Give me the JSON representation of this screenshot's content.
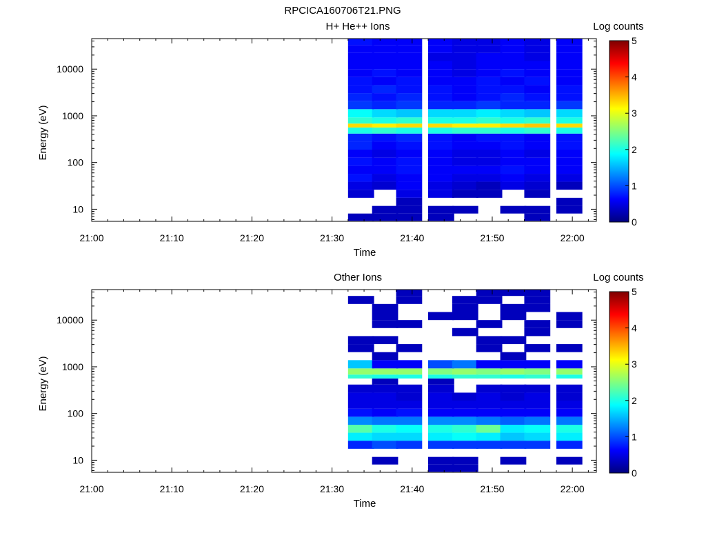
{
  "figure_title": "RPCICA160706T21.PNG",
  "colorbar_stops": [
    "#00007f",
    "#0000ff",
    "#0080ff",
    "#00ffff",
    "#80ff80",
    "#ffff00",
    "#ff8000",
    "#ff0000",
    "#7f0000"
  ],
  "chart_data": [
    {
      "type": "heatmap",
      "title": "H+ He++ Ions",
      "xlabel": "Time",
      "ylabel": "Energy (eV)",
      "x_ticks": [
        "21:00",
        "21:10",
        "21:20",
        "21:30",
        "21:40",
        "21:50",
        "22:00"
      ],
      "y_ticks": [
        "10",
        "100",
        "1000",
        "10000"
      ],
      "xlim": [
        "21:00",
        "22:03"
      ],
      "ylim": [
        5.5,
        45000
      ],
      "yscale": "log",
      "colorbar": {
        "label": "Log counts",
        "ticks": [
          "0",
          "1",
          "2",
          "3",
          "4",
          "5"
        ],
        "range": [
          0,
          5
        ]
      },
      "time_bins": [
        "21:32",
        "21:35",
        "21:38",
        "21:42",
        "21:45",
        "21:48",
        "21:51",
        "21:54",
        "21:58"
      ],
      "energy_bins_eV": [
        6.8,
        9.6,
        14.4,
        21.4,
        32,
        47,
        70,
        104,
        155,
        230,
        340,
        510,
        620,
        750,
        1140,
        1690,
        2510,
        3730,
        5540,
        8230,
        12200,
        18200,
        27000,
        40100
      ],
      "log_counts": [
        [
          0.3,
          0.3,
          0.3,
          0.3,
          null,
          null,
          null,
          0.3,
          null
        ],
        [
          null,
          0.3,
          0.3,
          0.3,
          0.3,
          null,
          0.3,
          0.3,
          0.3
        ],
        [
          null,
          null,
          0.3,
          null,
          null,
          null,
          null,
          null,
          0.3
        ],
        [
          0.4,
          null,
          0.5,
          0.5,
          0.3,
          0.3,
          null,
          0.3,
          null
        ],
        [
          0.5,
          0.4,
          0.6,
          0.5,
          0.4,
          0.3,
          0.5,
          0.4,
          0.3
        ],
        [
          0.7,
          0.5,
          0.6,
          0.6,
          0.5,
          0.5,
          0.6,
          0.5,
          0.5
        ],
        [
          0.6,
          0.6,
          0.7,
          0.6,
          0.6,
          0.6,
          0.7,
          0.6,
          0.6
        ],
        [
          0.7,
          0.6,
          0.7,
          0.6,
          0.5,
          0.5,
          0.6,
          0.6,
          0.6
        ],
        [
          0.6,
          0.5,
          0.6,
          0.6,
          0.5,
          0.5,
          0.6,
          0.5,
          0.6
        ],
        [
          0.8,
          0.6,
          0.7,
          0.7,
          0.6,
          0.6,
          0.7,
          0.6,
          0.7
        ],
        [
          0.8,
          0.7,
          0.8,
          0.7,
          0.6,
          0.7,
          0.7,
          0.6,
          0.7
        ],
        [
          2.0,
          2.1,
          2.0,
          2.0,
          2.1,
          2.1,
          2.0,
          2.1,
          2.0
        ],
        [
          3.3,
          3.2,
          3.3,
          3.3,
          3.2,
          3.2,
          3.3,
          3.4,
          3.3
        ],
        [
          2.1,
          2.0,
          2.1,
          2.0,
          2.0,
          2.1,
          2.0,
          2.1,
          2.0
        ],
        [
          1.9,
          1.7,
          1.6,
          1.7,
          1.7,
          1.8,
          1.7,
          1.6,
          1.7
        ],
        [
          0.9,
          0.8,
          0.9,
          0.8,
          0.8,
          0.9,
          0.8,
          0.8,
          0.9
        ],
        [
          0.8,
          0.7,
          0.8,
          0.7,
          0.6,
          0.7,
          0.8,
          0.7,
          0.7
        ],
        [
          0.7,
          0.8,
          0.7,
          0.7,
          0.6,
          0.7,
          0.7,
          0.6,
          0.7
        ],
        [
          0.7,
          0.6,
          0.7,
          0.6,
          0.6,
          0.7,
          0.6,
          0.7,
          0.6
        ],
        [
          0.6,
          0.7,
          0.6,
          0.6,
          0.5,
          0.6,
          0.7,
          0.6,
          0.6
        ],
        [
          0.6,
          0.6,
          0.6,
          0.6,
          0.5,
          0.6,
          0.6,
          0.6,
          0.6
        ],
        [
          0.6,
          0.6,
          0.6,
          0.5,
          0.5,
          0.6,
          0.6,
          0.5,
          0.6
        ],
        [
          0.6,
          0.6,
          0.6,
          0.6,
          0.5,
          0.5,
          0.6,
          0.5,
          0.6
        ],
        [
          0.7,
          0.6,
          0.6,
          0.6,
          0.5,
          0.5,
          0.6,
          0.5,
          0.6
        ]
      ]
    },
    {
      "type": "heatmap",
      "title": "Other Ions",
      "xlabel": "Time",
      "ylabel": "Energy (eV)",
      "x_ticks": [
        "21:00",
        "21:10",
        "21:20",
        "21:30",
        "21:40",
        "21:50",
        "22:00"
      ],
      "y_ticks": [
        "10",
        "100",
        "1000",
        "10000"
      ],
      "xlim": [
        "21:00",
        "22:03"
      ],
      "ylim": [
        5.5,
        45000
      ],
      "yscale": "log",
      "colorbar": {
        "label": "Log counts",
        "ticks": [
          "0",
          "1",
          "2",
          "3",
          "4",
          "5"
        ],
        "range": [
          0,
          5
        ]
      },
      "time_bins": [
        "21:32",
        "21:35",
        "21:38",
        "21:42",
        "21:45",
        "21:48",
        "21:51",
        "21:54",
        "21:58"
      ],
      "energy_bins_eV": [
        6.8,
        9.6,
        14.4,
        21.4,
        32,
        47,
        70,
        104,
        155,
        230,
        340,
        510,
        620,
        750,
        1140,
        1690,
        2510,
        3730,
        5540,
        8230,
        12200,
        18200,
        27000,
        40100
      ],
      "log_counts": [
        [
          null,
          null,
          null,
          0.3,
          0.3,
          null,
          null,
          null,
          null
        ],
        [
          null,
          0.3,
          null,
          0.3,
          0.3,
          null,
          0.3,
          null,
          0.3
        ],
        [
          null,
          null,
          null,
          null,
          null,
          null,
          null,
          null,
          null
        ],
        [
          0.8,
          1.0,
          0.9,
          0.9,
          0.9,
          0.9,
          0.9,
          0.9,
          0.8
        ],
        [
          1.8,
          1.7,
          1.7,
          1.8,
          1.9,
          1.8,
          1.6,
          1.7,
          1.8
        ],
        [
          2.3,
          2.0,
          1.9,
          2.0,
          2.1,
          2.4,
          1.8,
          1.9,
          2.0
        ],
        [
          1.3,
          1.2,
          1.2,
          1.3,
          1.3,
          1.2,
          1.1,
          1.2,
          1.2
        ],
        [
          0.7,
          0.6,
          0.7,
          0.6,
          0.6,
          0.6,
          0.6,
          0.6,
          0.6
        ],
        [
          0.5,
          0.5,
          0.5,
          0.5,
          0.5,
          0.5,
          0.5,
          0.5,
          0.5
        ],
        [
          0.5,
          0.5,
          0.4,
          0.5,
          0.4,
          0.5,
          0.4,
          0.5,
          0.4
        ],
        [
          0.4,
          0.4,
          0.4,
          0.4,
          null,
          0.4,
          0.4,
          0.4,
          0.4
        ],
        [
          null,
          0.3,
          null,
          0.3,
          null,
          null,
          null,
          null,
          null
        ],
        [
          2.1,
          2.0,
          2.0,
          2.0,
          2.1,
          2.1,
          2.0,
          2.1,
          2.0
        ],
        [
          2.6,
          2.6,
          2.6,
          2.5,
          2.6,
          2.5,
          2.6,
          2.5,
          2.6
        ],
        [
          1.6,
          0.6,
          0.6,
          1.0,
          1.2,
          0.6,
          0.6,
          0.6,
          0.6
        ],
        [
          null,
          0.3,
          null,
          null,
          null,
          null,
          0.3,
          null,
          null
        ],
        [
          0.3,
          null,
          0.3,
          null,
          null,
          0.3,
          null,
          0.3,
          0.3
        ],
        [
          0.3,
          0.3,
          null,
          null,
          null,
          0.3,
          0.3,
          null,
          null
        ],
        [
          null,
          null,
          null,
          null,
          0.3,
          null,
          null,
          0.3,
          null
        ],
        [
          null,
          0.3,
          0.3,
          null,
          null,
          0.3,
          null,
          0.3,
          0.3
        ],
        [
          null,
          0.3,
          null,
          0.3,
          0.3,
          null,
          0.3,
          null,
          0.3
        ],
        [
          null,
          0.3,
          null,
          null,
          0.3,
          null,
          0.3,
          0.3,
          null
        ],
        [
          0.3,
          null,
          0.3,
          null,
          0.3,
          0.3,
          null,
          0.3,
          null
        ],
        [
          null,
          null,
          0.3,
          null,
          null,
          0.3,
          0.3,
          0.3,
          null
        ]
      ]
    }
  ]
}
